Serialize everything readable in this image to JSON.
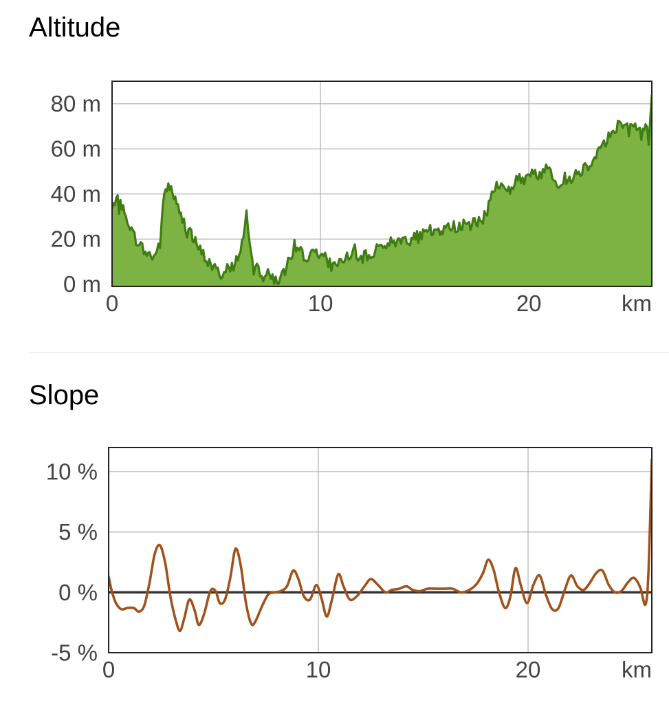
{
  "altitude": {
    "title": "Altitude"
  },
  "slope": {
    "title": "Slope"
  },
  "chart_data": [
    {
      "type": "area",
      "title": "Altitude",
      "xlabel": "km",
      "ylabel": "",
      "xlim": [
        0,
        25.9
      ],
      "ylim": [
        -1,
        90
      ],
      "x_ticks": [
        0,
        10,
        20
      ],
      "x_tick_labels": [
        "0",
        "10",
        "20"
      ],
      "x_unit_label": "km",
      "y_ticks": [
        0,
        20,
        40,
        60,
        80
      ],
      "y_tick_labels": [
        "0 m",
        "20 m",
        "40 m",
        "60 m",
        "80 m"
      ],
      "grid": true,
      "colors": {
        "fill": "#7cb342",
        "line": "#3f7d12"
      },
      "series": [
        {
          "x": [
            0,
            0.2,
            0.4,
            0.6,
            0.8,
            1.0,
            1.3,
            1.6,
            2.0,
            2.3,
            2.5,
            2.7,
            2.9,
            3.1,
            3.3,
            3.6,
            4.0,
            4.3,
            4.6,
            5.0,
            5.3,
            5.6,
            5.9,
            6.1,
            6.3,
            6.45,
            6.6,
            6.8,
            7.1,
            7.4,
            7.7,
            8.0,
            8.3,
            8.6,
            8.9,
            9.2,
            9.5,
            9.8,
            10.0,
            10.3,
            10.6,
            10.9,
            11.2,
            11.5,
            11.8,
            12.1,
            12.4,
            12.7,
            13.0,
            13.3,
            13.6,
            14.0,
            14.3,
            14.7,
            15.0,
            15.4,
            15.8,
            16.2,
            16.6,
            17.0,
            17.4,
            17.8,
            18.0,
            18.3,
            18.6,
            18.9,
            19.1,
            19.4,
            19.7,
            20.0,
            20.3,
            20.6,
            20.9,
            21.2,
            21.5,
            21.8,
            22.1,
            22.4,
            22.7,
            23.0,
            23.3,
            23.6,
            23.9,
            24.2,
            24.5,
            24.8,
            25.1,
            25.4,
            25.6,
            25.75,
            25.9
          ],
          "y": [
            33,
            36,
            38,
            30,
            28,
            22,
            18,
            14,
            12,
            18,
            40,
            44,
            41,
            35,
            30,
            25,
            18,
            14,
            10,
            6,
            4,
            7,
            9,
            14,
            20,
            33,
            18,
            10,
            6,
            5,
            3,
            1,
            6,
            12,
            15,
            13,
            12,
            15,
            14,
            10,
            8,
            10,
            12,
            14,
            10,
            12,
            13,
            16,
            18,
            18,
            19,
            20,
            20,
            21,
            22,
            23,
            24,
            25,
            26,
            26,
            27,
            28,
            33,
            43,
            44,
            42,
            42,
            46,
            47,
            47,
            50,
            48,
            54,
            47,
            44,
            46,
            48,
            50,
            52,
            54,
            60,
            62,
            66,
            70,
            72,
            68,
            70,
            66,
            72,
            64,
            84
          ]
        }
      ]
    },
    {
      "type": "line",
      "title": "Slope",
      "xlabel": "km",
      "ylabel": "",
      "xlim": [
        0,
        25.9
      ],
      "ylim": [
        -5,
        12
      ],
      "x_ticks": [
        0,
        10,
        20
      ],
      "x_tick_labels": [
        "0",
        "10",
        "20"
      ],
      "x_unit_label": "km",
      "y_ticks": [
        -5,
        0,
        5,
        10
      ],
      "y_tick_labels": [
        "-5 %",
        "0 %",
        "5 %",
        "10 %"
      ],
      "grid": true,
      "colors": {
        "line": "#a0521d",
        "zero": "#333333"
      },
      "series": [
        {
          "x": [
            0,
            0.15,
            0.35,
            0.6,
            0.9,
            1.2,
            1.45,
            1.7,
            1.95,
            2.2,
            2.45,
            2.7,
            2.95,
            3.2,
            3.4,
            3.6,
            3.85,
            4.1,
            4.3,
            4.55,
            4.85,
            5.1,
            5.3,
            5.55,
            5.8,
            6.05,
            6.3,
            6.55,
            6.8,
            7.0,
            7.3,
            7.6,
            7.9,
            8.2,
            8.5,
            8.8,
            9.05,
            9.3,
            9.6,
            9.9,
            10.15,
            10.4,
            10.65,
            10.95,
            11.2,
            11.5,
            11.85,
            12.2,
            12.5,
            12.85,
            13.2,
            13.5,
            13.85,
            14.2,
            14.5,
            14.85,
            15.2,
            15.6,
            16.0,
            16.4,
            16.8,
            17.2,
            17.55,
            17.85,
            18.1,
            18.35,
            18.6,
            18.9,
            19.15,
            19.4,
            19.65,
            19.95,
            20.25,
            20.55,
            20.85,
            21.15,
            21.45,
            21.75,
            22.05,
            22.35,
            22.65,
            22.95,
            23.25,
            23.55,
            23.85,
            24.15,
            24.45,
            24.75,
            25.05,
            25.35,
            25.6,
            25.75,
            25.9
          ],
          "y": [
            1.3,
            0.1,
            -0.9,
            -1.4,
            -1.3,
            -1.3,
            -1.6,
            -1.1,
            0.8,
            3.2,
            3.9,
            2.4,
            -0.4,
            -2.3,
            -3.2,
            -2.2,
            -0.6,
            -1.5,
            -2.7,
            -1.8,
            0.1,
            0.1,
            -0.9,
            -0.6,
            1.2,
            3.6,
            2.2,
            -0.9,
            -2.6,
            -2.4,
            -1.2,
            -0.2,
            0.0,
            0.1,
            0.5,
            1.8,
            1.1,
            -0.3,
            -0.6,
            0.6,
            -0.5,
            -2.0,
            -0.6,
            1.5,
            0.5,
            -0.6,
            -0.3,
            0.5,
            1.1,
            0.6,
            0.0,
            0.2,
            0.3,
            0.5,
            0.2,
            0.1,
            0.3,
            0.3,
            0.3,
            0.3,
            0.0,
            0.2,
            0.7,
            1.6,
            2.7,
            1.9,
            0.1,
            -1.3,
            -0.4,
            2.0,
            0.6,
            -0.9,
            0.6,
            1.4,
            -0.2,
            -1.4,
            -1.3,
            0.2,
            1.4,
            0.5,
            0.2,
            0.8,
            1.6,
            1.8,
            0.6,
            0.0,
            0.1,
            0.8,
            1.2,
            0.4,
            -1.0,
            2.0,
            11.0
          ]
        }
      ]
    }
  ]
}
